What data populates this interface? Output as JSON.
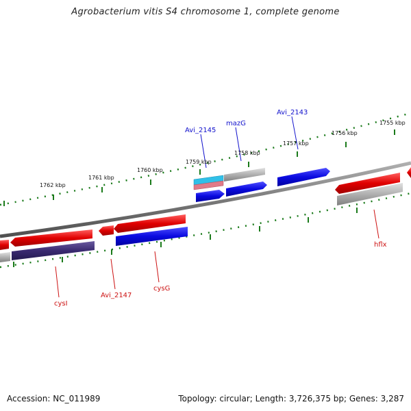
{
  "title": "Agrobacterium vitis S4 chromosome 1, complete genome",
  "footer": {
    "accession": "Accession: NC_011989",
    "summary": "Topology: circular; Length: 3,726,375 bp; Genes: 3,287"
  },
  "ticks": [
    "1762 kbp",
    "1761 kbp",
    "1760 kbp",
    "1759 kbp",
    "1758 kbp",
    "1757 kbp",
    "1756 kbp",
    "1755 kbp"
  ],
  "labels": {
    "avi2145": "Avi_2145",
    "mazG": "mazG",
    "avi2143": "Avi_2143",
    "hflx": "hflx",
    "cysI": "cysI",
    "avi2147": "Avi_2147",
    "cysG": "cysG"
  },
  "colors": {
    "forward_cds": "#e01010",
    "reverse_cds": "#1414e0",
    "gene": "#a0a0a0",
    "rna": "#30c0e0",
    "pseudo": "#e07080",
    "dark_cds": "#40307a",
    "backbone": "#8a8a8a",
    "tick": "#1a7a1a"
  }
}
